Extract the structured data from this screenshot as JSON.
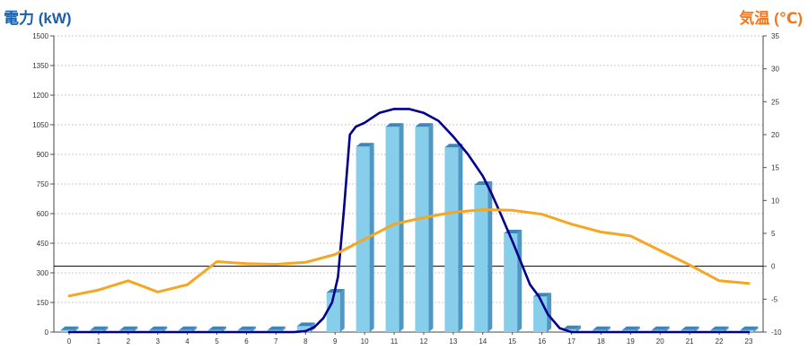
{
  "chart_data": {
    "type": "bar",
    "title": "",
    "y_left_label": "電力 (kW)",
    "y_right_label": "気温 (℃)",
    "x_ticks": [
      "0",
      "1",
      "2",
      "3",
      "4",
      "5",
      "6",
      "7",
      "8",
      "9",
      "10",
      "11",
      "12",
      "13",
      "14",
      "15",
      "16",
      "17",
      "18",
      "19",
      "20",
      "21",
      "22",
      "23"
    ],
    "y_left_ticks": [
      "0",
      "150",
      "300",
      "450",
      "600",
      "750",
      "900",
      "1050",
      "1200",
      "1350",
      "1500"
    ],
    "y_right_ticks": [
      "-10",
      "-5",
      "0",
      "5",
      "10",
      "15",
      "20",
      "25",
      "30",
      "35"
    ],
    "y_left_range": [
      0,
      1500
    ],
    "y_right_range": [
      -10,
      35
    ],
    "grid": true,
    "reference_line_right": 0,
    "bars": {
      "x": [
        0,
        1,
        2,
        3,
        4,
        5,
        6,
        7,
        8,
        9,
        10,
        11,
        12,
        13,
        14,
        15,
        16,
        17,
        18,
        19,
        20,
        21,
        22,
        23
      ],
      "values": [
        10,
        10,
        10,
        10,
        10,
        10,
        10,
        10,
        30,
        200,
        940,
        1040,
        1040,
        935,
        745,
        500,
        180,
        15,
        10,
        10,
        10,
        10,
        10,
        10
      ],
      "color": "#87ceeb"
    },
    "series": [
      {
        "kind": "line",
        "axis": "left",
        "color": "#00008b",
        "x": [
          0,
          7,
          7.6,
          8,
          8.3,
          8.6,
          8.9,
          9.1,
          9.3,
          9.5,
          9.7,
          10,
          10.5,
          11,
          11.5,
          12,
          12.5,
          13,
          13.5,
          14,
          14.3,
          14.6,
          15,
          15.3,
          15.6,
          15.9,
          16.2,
          16.6,
          17,
          23
        ],
        "values": [
          0,
          0,
          0,
          5,
          25,
          70,
          150,
          280,
          620,
          1000,
          1040,
          1060,
          1110,
          1130,
          1130,
          1110,
          1070,
          990,
          900,
          790,
          700,
          600,
          460,
          350,
          240,
          180,
          90,
          20,
          0,
          0
        ]
      },
      {
        "kind": "line",
        "axis": "right",
        "color": "#f5a623",
        "x": [
          0,
          1,
          2,
          3,
          4,
          5,
          6,
          7,
          8,
          9,
          10,
          11,
          12,
          13,
          14,
          15,
          16,
          17,
          18,
          19,
          20,
          21,
          22,
          23
        ],
        "values": [
          -4.5,
          -3.6,
          -2.2,
          -3.9,
          -2.8,
          0.7,
          0.4,
          0.3,
          0.6,
          1.8,
          4.1,
          6.4,
          7.4,
          8.2,
          8.6,
          8.5,
          7.9,
          6.4,
          5.2,
          4.6,
          2.4,
          0.2,
          -2.2,
          -2.6
        ]
      }
    ]
  }
}
